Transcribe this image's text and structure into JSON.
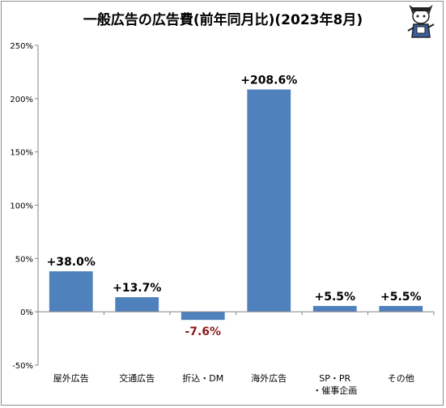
{
  "chart_data": {
    "type": "bar",
    "title": "一般広告の広告費(前年同月比)(2023年8月)",
    "categories": [
      "屋外広告",
      "交通広告",
      "折込・DM",
      "海外広告",
      "SP・PR・催事企画",
      "その他"
    ],
    "category_labels": [
      [
        "屋外広告"
      ],
      [
        "交通広告"
      ],
      [
        "折込・DM"
      ],
      [
        "海外広告"
      ],
      [
        "SP・PR",
        "・催事企画"
      ],
      [
        "その他"
      ]
    ],
    "values": [
      38.0,
      13.7,
      -7.6,
      208.6,
      5.5,
      5.5
    ],
    "value_labels": [
      "+38.0%",
      "+13.7%",
      "-7.6%",
      "+208.6%",
      "+5.5%",
      "+5.5%"
    ],
    "ylim": [
      -50,
      250
    ],
    "yticks": [
      -50,
      0,
      50,
      100,
      150,
      200,
      250
    ],
    "ytick_labels": [
      "-50%",
      "0%",
      "50%",
      "100%",
      "150%",
      "200%",
      "250%"
    ],
    "grid": false,
    "xlabel": "",
    "ylabel": "",
    "colors": {
      "bar": "#4f81bd",
      "positive_label": "#000000",
      "negative_label": "#8b1a1a",
      "axis": "#868686"
    }
  }
}
